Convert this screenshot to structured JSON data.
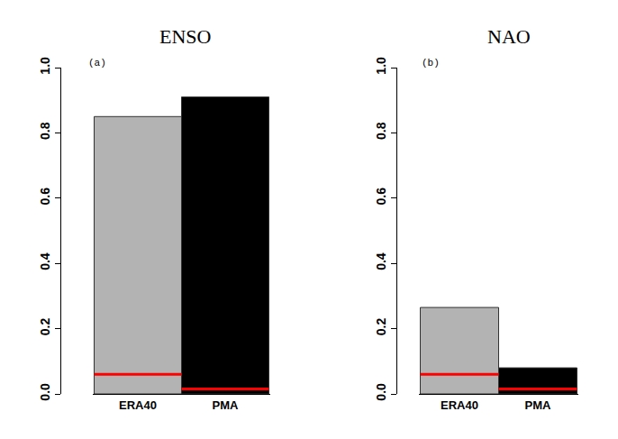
{
  "chart_data": [
    {
      "type": "bar",
      "title": "ENSO",
      "annotation": "(a)",
      "categories": [
        "ERA40",
        "PMA"
      ],
      "values": [
        0.85,
        0.91
      ],
      "colors": [
        "#b3b3b3",
        "#000000"
      ],
      "thresholds": [
        0.06,
        0.015
      ],
      "ylim": [
        0,
        1
      ],
      "yticks": [
        {
          "value": 0,
          "label": "0.0"
        },
        {
          "value": 0.2,
          "label": "0.2"
        },
        {
          "value": 0.4,
          "label": "0.4"
        },
        {
          "value": 0.6,
          "label": "0.6"
        },
        {
          "value": 0.8,
          "label": "0.8"
        },
        {
          "value": 1,
          "label": "1.0"
        }
      ],
      "grid": false
    },
    {
      "type": "bar",
      "title": "NAO",
      "annotation": "(b)",
      "categories": [
        "ERA40",
        "PMA"
      ],
      "values": [
        0.265,
        0.08
      ],
      "colors": [
        "#b3b3b3",
        "#000000"
      ],
      "thresholds": [
        0.06,
        0.015
      ],
      "ylim": [
        0,
        1
      ],
      "yticks": [
        {
          "value": 0,
          "label": "0.0"
        },
        {
          "value": 0.2,
          "label": "0.2"
        },
        {
          "value": 0.4,
          "label": "0.4"
        },
        {
          "value": 0.6,
          "label": "0.6"
        },
        {
          "value": 0.8,
          "label": "0.8"
        },
        {
          "value": 1,
          "label": "1.0"
        }
      ],
      "grid": false
    }
  ]
}
